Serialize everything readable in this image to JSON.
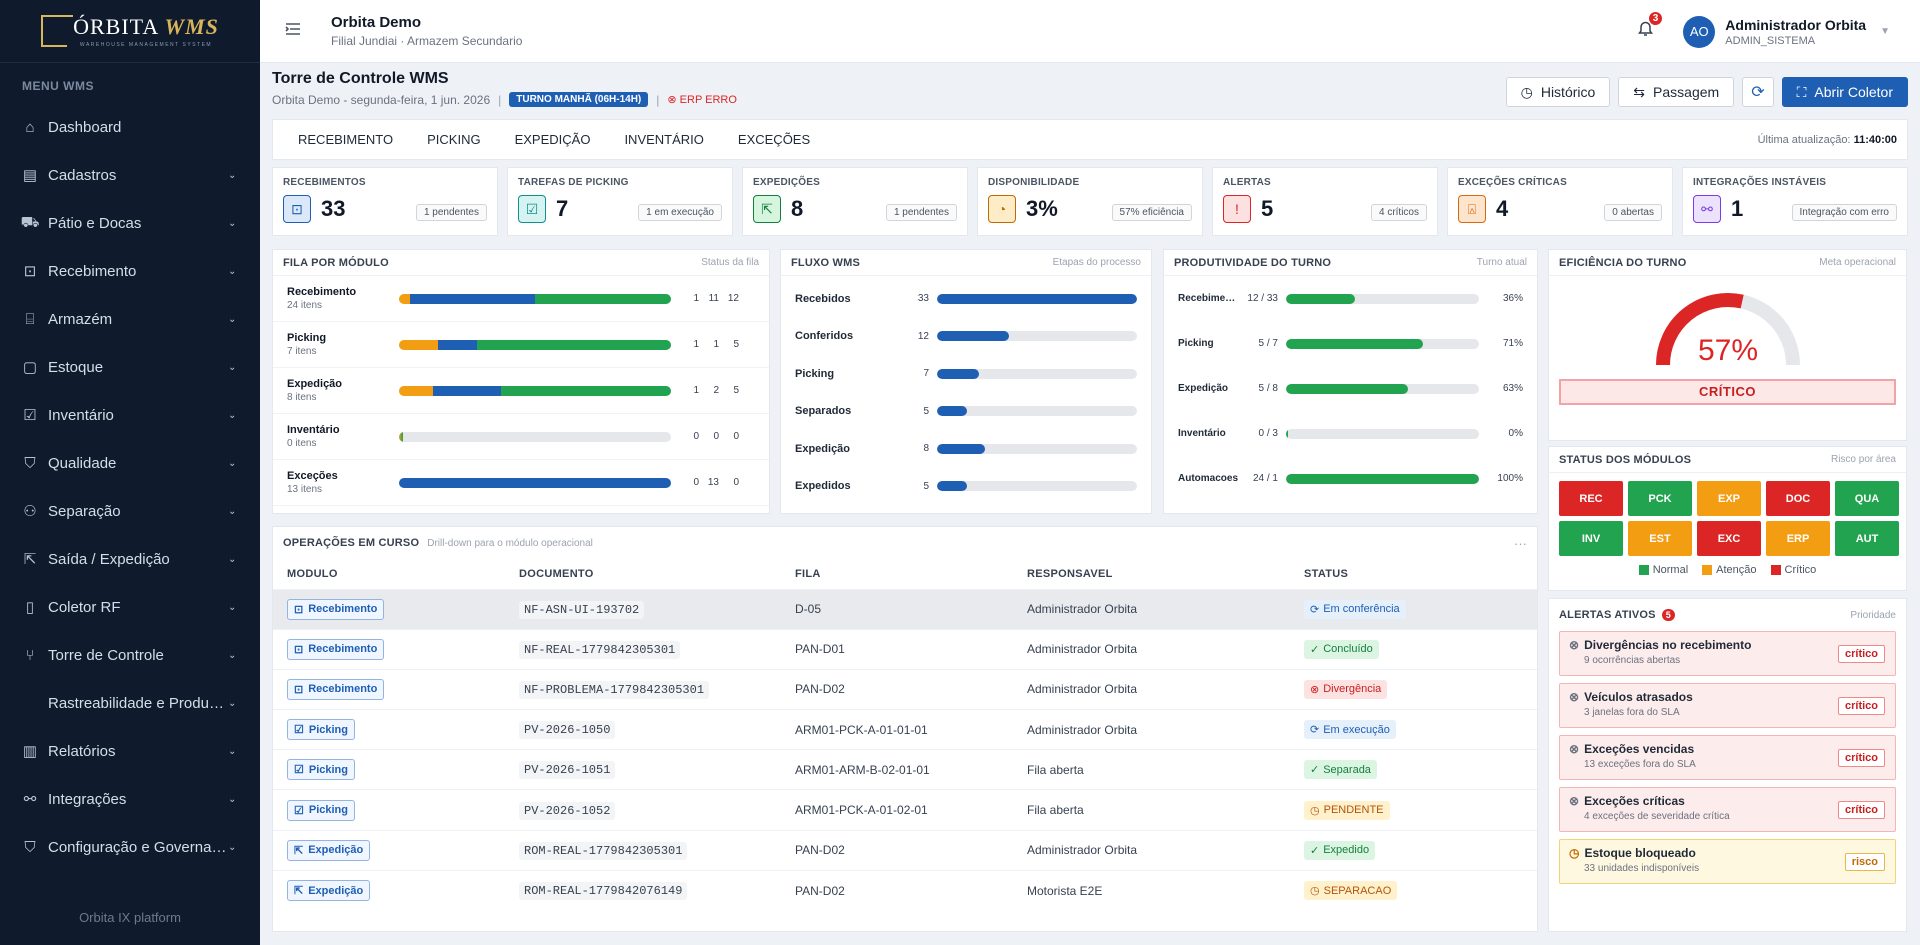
{
  "brand": {
    "name": "ÓRBITA",
    "accent": "WMS",
    "sub": "WAREHOUSE MANAGEMENT SYSTEM"
  },
  "sidebar": {
    "menu_title": "MENU WMS",
    "items": [
      {
        "label": "Dashboard",
        "icon": "home-icon",
        "chevron": false
      },
      {
        "label": "Cadastros",
        "icon": "clipboard-icon",
        "chevron": true
      },
      {
        "label": "Pátio e Docas",
        "icon": "truck-icon",
        "chevron": true
      },
      {
        "label": "Recebimento",
        "icon": "inbox-icon",
        "chevron": true
      },
      {
        "label": "Armazém",
        "icon": "warehouse-icon",
        "chevron": true
      },
      {
        "label": "Estoque",
        "icon": "box-icon",
        "chevron": true
      },
      {
        "label": "Inventário",
        "icon": "checklist-icon",
        "chevron": true
      },
      {
        "label": "Qualidade",
        "icon": "shield-icon",
        "chevron": true
      },
      {
        "label": "Separação",
        "icon": "people-icon",
        "chevron": true
      },
      {
        "label": "Saída / Expedição",
        "icon": "export-icon",
        "chevron": true
      },
      {
        "label": "Coletor RF",
        "icon": "phone-icon",
        "chevron": true
      },
      {
        "label": "Torre de Controle",
        "icon": "branch-icon",
        "chevron": true
      },
      {
        "label": "Rastreabilidade e Produção",
        "icon": "",
        "chevron": true
      },
      {
        "label": "Relatórios",
        "icon": "chart-icon",
        "chevron": true
      },
      {
        "label": "Integrações",
        "icon": "link-icon",
        "chevron": true
      },
      {
        "label": "Configuração e Governan...",
        "icon": "shield-check-icon",
        "chevron": true
      }
    ],
    "platform": "Orbita IX platform"
  },
  "topbar": {
    "org": "Orbita Demo",
    "sub": "Filial Jundiai · Armazem Secundario",
    "notif_count": "3",
    "avatar": "AO",
    "user": "Administrador Orbita",
    "role": "ADMIN_SISTEMA"
  },
  "header": {
    "title": "Torre de Controle WMS",
    "subtitle": "Orbita Demo - segunda-feira, 1 jun. 2026",
    "shift": "TURNO MANHÃ (06H-14H)",
    "erp": "ERP ERRO",
    "buttons": {
      "historico": "Histórico",
      "passagem": "Passagem",
      "coletor": "Abrir Coletor"
    }
  },
  "tabs": [
    "RECEBIMENTO",
    "PICKING",
    "EXPEDIÇÃO",
    "INVENTÁRIO",
    "EXCEÇÕES"
  ],
  "last_update": {
    "label": "Última atualização:",
    "time": "11:40:00"
  },
  "kpis": [
    {
      "label": "RECEBIMENTOS",
      "value": "33",
      "tag": "1 pendentes",
      "icon": "inbox-icon",
      "fg": "#1e5fb3",
      "bg": "#dbe8f8"
    },
    {
      "label": "TAREFAS DE PICKING",
      "value": "7",
      "tag": "1 em execução",
      "icon": "checkbox-icon",
      "fg": "#0f8f8f",
      "bg": "#d5f3f1"
    },
    {
      "label": "EXPEDIÇÕES",
      "value": "8",
      "tag": "1 pendentes",
      "icon": "export-icon",
      "fg": "#15803d",
      "bg": "#d6f5df"
    },
    {
      "label": "DISPONIBILIDADE",
      "value": "3%",
      "tag": "57% eficiência",
      "icon": "pie-icon",
      "fg": "#c26a00",
      "bg": "#fdecc8"
    },
    {
      "label": "ALERTAS",
      "value": "5",
      "tag": "4 críticos",
      "icon": "alert-icon",
      "fg": "#dc2626",
      "bg": "#fde0e0"
    },
    {
      "label": "EXCEÇÕES CRÍTICAS",
      "value": "4",
      "tag": "0 abertas",
      "icon": "siren-icon",
      "fg": "#d9690b",
      "bg": "#fde4cc"
    },
    {
      "label": "INTEGRAÇÕES INSTÁVEIS",
      "value": "1",
      "tag": "Integração com erro",
      "icon": "link-icon",
      "fg": "#7c3aed",
      "bg": "#ece2fc"
    }
  ],
  "fila": {
    "title": "FILA POR MÓDULO",
    "sub": "Status da fila",
    "rows": [
      {
        "name": "Recebimento",
        "count": "24 itens",
        "a": 1,
        "b": 11,
        "c": 12
      },
      {
        "name": "Picking",
        "count": "7 itens",
        "a": 1,
        "b": 1,
        "c": 5
      },
      {
        "name": "Expedição",
        "count": "8 itens",
        "a": 1,
        "b": 2,
        "c": 5
      },
      {
        "name": "Inventário",
        "count": "0 itens",
        "a": 0,
        "b": 0,
        "c": 0
      },
      {
        "name": "Exceções",
        "count": "13 itens",
        "a": 0,
        "b": 13,
        "c": 0
      }
    ]
  },
  "fluxo": {
    "title": "FLUXO WMS",
    "sub": "Etapas do processo",
    "rows": [
      {
        "name": "Recebidos",
        "value": 33,
        "pct": 100
      },
      {
        "name": "Conferidos",
        "value": 12,
        "pct": 36
      },
      {
        "name": "Picking",
        "value": 7,
        "pct": 21
      },
      {
        "name": "Separados",
        "value": 5,
        "pct": 15
      },
      {
        "name": "Expedição",
        "value": 8,
        "pct": 24
      },
      {
        "name": "Expedidos",
        "value": 5,
        "pct": 15
      }
    ]
  },
  "prod": {
    "title": "PRODUTIVIDADE DO TURNO",
    "sub": "Turno atual",
    "rows": [
      {
        "name": "Recebimento",
        "frac": "12 / 33",
        "pct": 36,
        "pct_label": "36%"
      },
      {
        "name": "Picking",
        "frac": "5 / 7",
        "pct": 71,
        "pct_label": "71%"
      },
      {
        "name": "Expedição",
        "frac": "5 / 8",
        "pct": 63,
        "pct_label": "63%"
      },
      {
        "name": "Inventário",
        "frac": "0 / 3",
        "pct": 0,
        "pct_label": "0%"
      },
      {
        "name": "Automacoes",
        "frac": "24 / 1",
        "pct": 100,
        "pct_label": "100%"
      }
    ]
  },
  "eficiencia": {
    "title": "EFICIÊNCIA DO TURNO",
    "sub": "Meta operacional",
    "value": 57,
    "value_label": "57%",
    "status": "CRÍTICO"
  },
  "modulos": {
    "title": "STATUS DOS MÓDULOS",
    "sub": "Risco por área",
    "cells": [
      {
        "code": "REC",
        "state": "critico"
      },
      {
        "code": "PCK",
        "state": "normal"
      },
      {
        "code": "EXP",
        "state": "atencao"
      },
      {
        "code": "DOC",
        "state": "critico"
      },
      {
        "code": "QUA",
        "state": "normal"
      },
      {
        "code": "INV",
        "state": "normal"
      },
      {
        "code": "EST",
        "state": "atencao"
      },
      {
        "code": "EXC",
        "state": "critico"
      },
      {
        "code": "ERP",
        "state": "atencao"
      },
      {
        "code": "AUT",
        "state": "normal"
      }
    ],
    "colors": {
      "normal": "#22a34f",
      "atencao": "#f29d12",
      "critico": "#dc2626"
    },
    "legend": {
      "normal": "Normal",
      "atencao": "Atenção",
      "critico": "Crítico"
    }
  },
  "alertas": {
    "title": "ALERTAS ATIVOS",
    "count": "5",
    "sub": "Prioridade",
    "items": [
      {
        "title": "Divergências no recebimento",
        "sub": "9 ocorrências abertas",
        "badge": "crítico",
        "level": "crit"
      },
      {
        "title": "Veículos atrasados",
        "sub": "3 janelas fora do SLA",
        "badge": "crítico",
        "level": "crit"
      },
      {
        "title": "Exceções vencidas",
        "sub": "13 exceções fora do SLA",
        "badge": "crítico",
        "level": "crit"
      },
      {
        "title": "Exceções críticas",
        "sub": "4 exceções de severidade crítica",
        "badge": "crítico",
        "level": "crit"
      },
      {
        "title": "Estoque bloqueado",
        "sub": "33 unidades indisponíveis",
        "badge": "risco",
        "level": "warn"
      }
    ]
  },
  "ops": {
    "title": "OPERAÇÕES EM CURSO",
    "sub": "Drill-down para o módulo operacional",
    "more": "···",
    "columns": [
      "MODULO",
      "DOCUMENTO",
      "FILA",
      "RESPONSAVEL",
      "STATUS"
    ],
    "rows": [
      {
        "mod": "Recebimento",
        "mod_icon": "inbox-icon",
        "doc": "NF-ASN-UI-193702",
        "fila": "D-05",
        "resp": "Administrador Orbita",
        "status": "Em conferência",
        "st": "info",
        "sel": true
      },
      {
        "mod": "Recebimento",
        "mod_icon": "inbox-icon",
        "doc": "NF-REAL-1779842305301",
        "fila": "PAN-D01",
        "resp": "Administrador Orbita",
        "status": "Concluído",
        "st": "ok",
        "sel": false
      },
      {
        "mod": "Recebimento",
        "mod_icon": "inbox-icon",
        "doc": "NF-PROBLEMA-1779842305301",
        "fila": "PAN-D02",
        "resp": "Administrador Orbita",
        "status": "Divergência",
        "st": "err",
        "sel": false
      },
      {
        "mod": "Picking",
        "mod_icon": "checkbox-icon",
        "doc": "PV-2026-1050",
        "fila": "ARM01-PCK-A-01-01-01",
        "resp": "Administrador Orbita",
        "status": "Em execução",
        "st": "info",
        "sel": false
      },
      {
        "mod": "Picking",
        "mod_icon": "checkbox-icon",
        "doc": "PV-2026-1051",
        "fila": "ARM01-ARM-B-02-01-01",
        "resp": "Fila aberta",
        "status": "Separada",
        "st": "ok",
        "sel": false
      },
      {
        "mod": "Picking",
        "mod_icon": "checkbox-icon",
        "doc": "PV-2026-1052",
        "fila": "ARM01-PCK-A-01-02-01",
        "resp": "Fila aberta",
        "status": "PENDENTE",
        "st": "warn",
        "sel": false
      },
      {
        "mod": "Expedição",
        "mod_icon": "export-icon",
        "doc": "ROM-REAL-1779842305301",
        "fila": "PAN-D02",
        "resp": "Administrador Orbita",
        "status": "Expedido",
        "st": "ok",
        "sel": false
      },
      {
        "mod": "Expedição",
        "mod_icon": "export-icon",
        "doc": "ROM-REAL-1779842076149",
        "fila": "PAN-D02",
        "resp": "Motorista E2E",
        "status": "SEPARACAO",
        "st": "warn",
        "sel": false
      }
    ]
  }
}
